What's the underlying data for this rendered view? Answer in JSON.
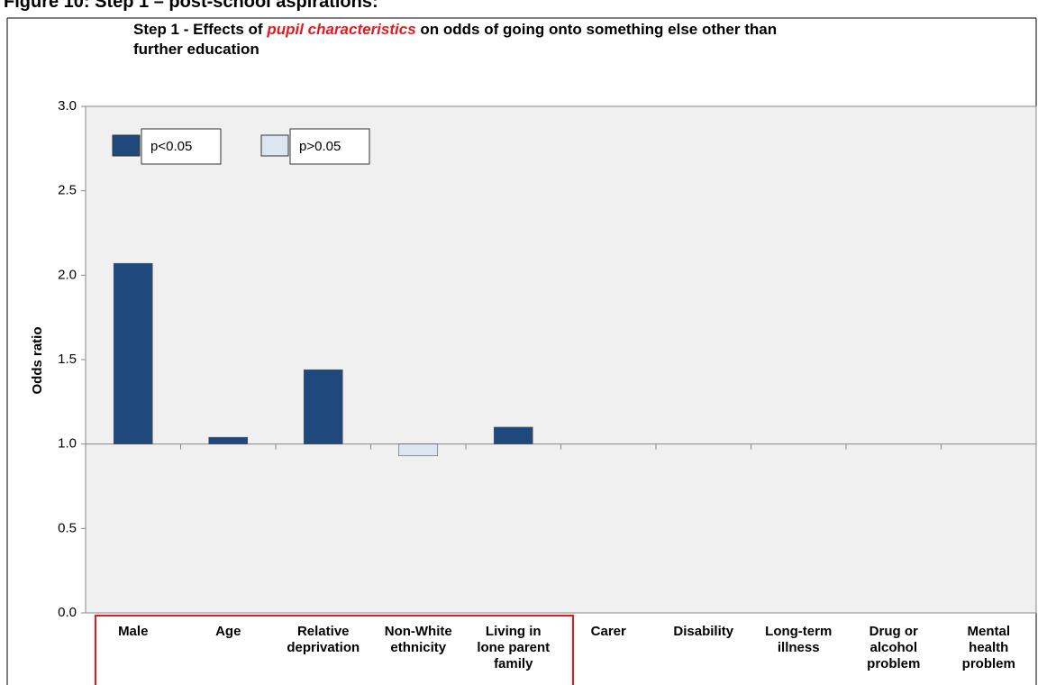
{
  "heading": "Figure 10: Step 1 – post-school aspirations:",
  "chart_data": {
    "type": "bar",
    "title": {
      "before": "Step 1 - Effects of ",
      "highlight": "pupil characteristics",
      "after": " on odds of going onto something else other than further education"
    },
    "ylabel": "Odds ratio",
    "categories": [
      "Male",
      "Age",
      "Relative deprivation",
      "Non-White ethnicity",
      "Living in lone parent family",
      "Carer",
      "Disability",
      "Long-term illness",
      "Drug or alcohol problem",
      "Mental health problem"
    ],
    "series": [
      {
        "name": "p<0.05",
        "color": "#1f497d",
        "values": [
          2.07,
          1.04,
          1.44,
          null,
          1.1,
          null,
          null,
          null,
          null,
          null
        ]
      },
      {
        "name": "p>0.05",
        "color": "#dce6f2",
        "values": [
          null,
          null,
          null,
          0.93,
          null,
          null,
          null,
          null,
          null,
          null
        ]
      }
    ],
    "baseline": 1,
    "ylim": [
      0,
      3
    ],
    "yticks": [
      {
        "value": 0,
        "label": "0.0"
      },
      {
        "value": 0.5,
        "label": "0.5"
      },
      {
        "value": 1,
        "label": "1.0"
      },
      {
        "value": 1.5,
        "label": "1.5"
      },
      {
        "value": 2,
        "label": "2.0"
      },
      {
        "value": 2.5,
        "label": "2.5"
      },
      {
        "value": 3,
        "label": "3.0"
      }
    ]
  }
}
